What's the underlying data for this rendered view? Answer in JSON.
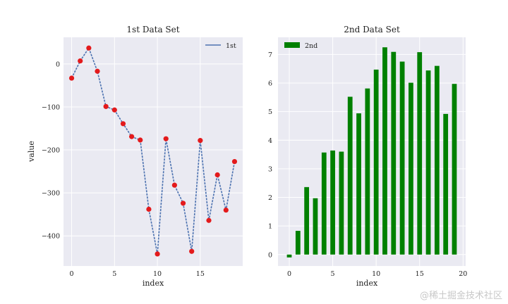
{
  "chart_data": [
    {
      "type": "line",
      "title": "1st Data Set",
      "xlabel": "index",
      "ylabel": "value",
      "xlim": [
        -0.95,
        19.95
      ],
      "ylim": [
        -470,
        62
      ],
      "xticks": [
        0,
        5,
        10,
        15
      ],
      "yticks": [
        0,
        -100,
        -200,
        -300,
        -400
      ],
      "grid": true,
      "legend": {
        "position": "top-right",
        "entries": [
          "1st"
        ]
      },
      "series": [
        {
          "name": "1st",
          "color": "#4c72b0",
          "marker_color": "#e31a1c",
          "x": [
            0,
            1,
            2,
            3,
            4,
            5,
            6,
            7,
            8,
            9,
            10,
            11,
            12,
            13,
            14,
            15,
            16,
            17,
            18,
            19
          ],
          "y": [
            -33,
            7,
            37,
            -17,
            -99,
            -107,
            -139,
            -169,
            -177,
            -338,
            -442,
            -174,
            -282,
            -324,
            -436,
            -178,
            -364,
            -258,
            -340,
            -227
          ]
        }
      ]
    },
    {
      "type": "bar",
      "title": "2nd Data Set",
      "xlabel": "index",
      "ylabel": "",
      "xlim": [
        -1.3,
        20.3
      ],
      "ylim": [
        -0.4,
        7.6
      ],
      "xticks": [
        0,
        5,
        10,
        15,
        20
      ],
      "yticks": [
        0,
        1,
        2,
        3,
        4,
        5,
        6,
        7
      ],
      "grid": true,
      "legend": {
        "position": "top-left",
        "entries": [
          "2nd"
        ]
      },
      "series": [
        {
          "name": "2nd",
          "color": "#008000",
          "x": [
            0,
            1,
            2,
            3,
            4,
            5,
            6,
            7,
            8,
            9,
            10,
            11,
            12,
            13,
            14,
            15,
            16,
            17,
            18,
            19
          ],
          "values": [
            -0.1,
            0.83,
            2.36,
            1.97,
            3.57,
            3.64,
            3.6,
            5.52,
            4.94,
            5.81,
            6.47,
            7.25,
            7.09,
            6.75,
            6.01,
            7.08,
            6.44,
            6.6,
            4.92,
            5.97
          ]
        }
      ]
    }
  ],
  "colors": {
    "plot_bg": "#eaeaf2",
    "grid": "#ffffff"
  },
  "watermark": "@稀土掘金技术社区"
}
